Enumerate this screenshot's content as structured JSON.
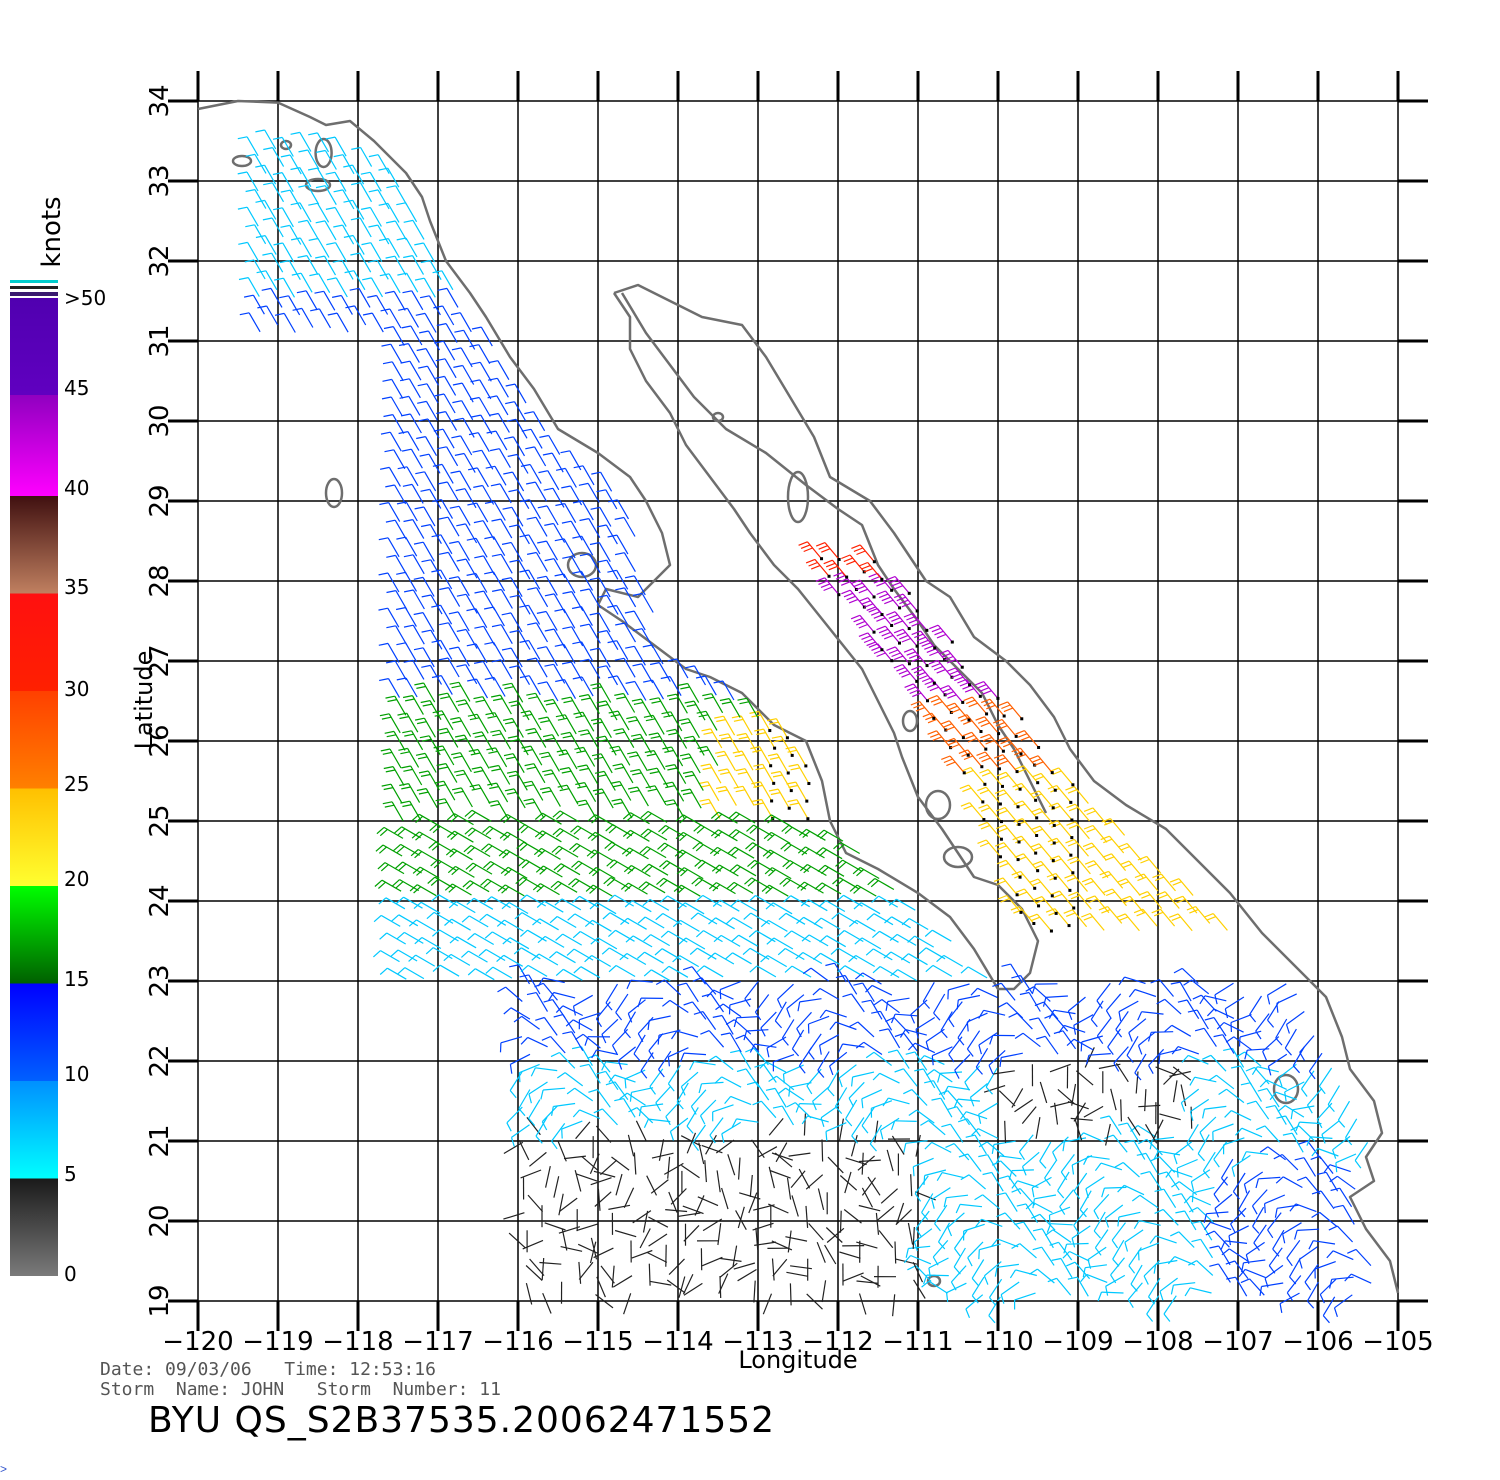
{
  "map": {
    "lon_range": [
      -120,
      -105
    ],
    "lat_range": [
      19,
      34
    ],
    "lon_ticks": [
      "−120",
      "−119",
      "−118",
      "−117",
      "−116",
      "−115",
      "−114",
      "−113",
      "−112",
      "−111",
      "−110",
      "−109",
      "−108",
      "−107",
      "−106",
      "−105"
    ],
    "lat_ticks": [
      "19",
      "20",
      "21",
      "22",
      "23",
      "24",
      "25",
      "26",
      "27",
      "28",
      "29",
      "30",
      "31",
      "32",
      "33",
      "34"
    ],
    "xlabel": "Longitude",
    "ylabel": "Latitude",
    "coast_color": "#6e6e6e",
    "grid_color": "#000000"
  },
  "colorbar": {
    "units": "knots",
    "labels": [
      ">50",
      "45",
      "40",
      "35",
      "30",
      "25",
      "20",
      "15",
      "10",
      "5",
      "0"
    ],
    "bands": [
      {
        "from": 0,
        "to": 5,
        "colors": [
          "#7a7a7a",
          "#1a1a1a"
        ]
      },
      {
        "from": 5,
        "to": 10,
        "colors": [
          "#00ffff",
          "#0090ff"
        ]
      },
      {
        "from": 10,
        "to": 15,
        "colors": [
          "#0060ff",
          "#0000ff"
        ]
      },
      {
        "from": 15,
        "to": 20,
        "colors": [
          "#006000",
          "#00ff00"
        ]
      },
      {
        "from": 20,
        "to": 25,
        "colors": [
          "#ffff30",
          "#ffc000"
        ]
      },
      {
        "from": 25,
        "to": 30,
        "colors": [
          "#ff8000",
          "#ff4000"
        ]
      },
      {
        "from": 30,
        "to": 35,
        "colors": [
          "#ff2000",
          "#ff1010"
        ]
      },
      {
        "from": 35,
        "to": 40,
        "colors": [
          "#c08060",
          "#401010"
        ]
      },
      {
        "from": 40,
        "to": 50,
        "colors": [
          "#ff00ff",
          "#9000c0"
        ]
      },
      {
        "from": 50,
        "to": 55,
        "colors": [
          "#6000c0",
          "#5000b0"
        ]
      }
    ]
  },
  "wind_field": {
    "description_regions": [
      {
        "name": "open-ocean-west",
        "speed_knots": 12,
        "direction_deg_to": 135
      },
      {
        "name": "mid-ocean",
        "speed_knots": 17,
        "direction_deg_to": 150
      },
      {
        "name": "south",
        "speed_knots": 7,
        "direction_deg_to": 90
      },
      {
        "name": "gulf-of-california",
        "speed_knots": 42,
        "direction_deg_to": 135
      }
    ]
  },
  "meta": {
    "date_line": "Date: 09/03/06   Time: 12:53:16",
    "storm_line": "Storm  Name: JOHN   Storm  Number: 11"
  },
  "product_id": "BYU  QS_S2B37535.20062471552",
  "corner_text": ">"
}
